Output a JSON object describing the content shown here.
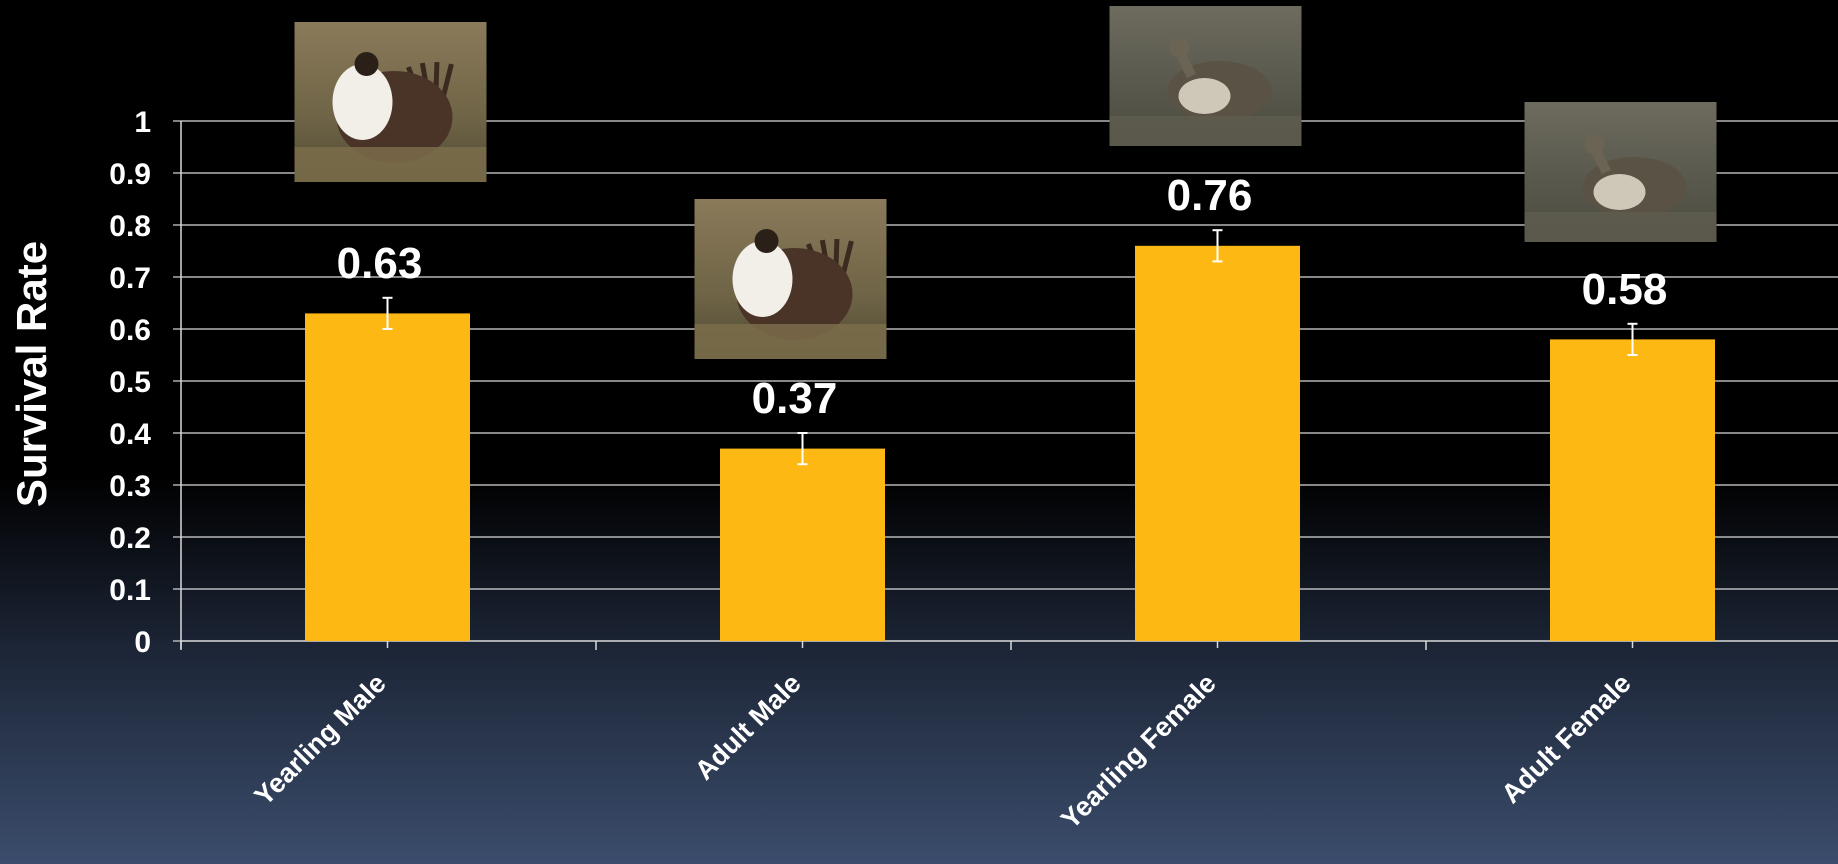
{
  "chart_data": {
    "type": "bar",
    "title": "",
    "xlabel": "",
    "ylabel": "Survival Rate",
    "categories": [
      "Yearling Male",
      "Adult Male",
      "Yearling Female",
      "Adult Female"
    ],
    "values": [
      0.63,
      0.37,
      0.76,
      0.58
    ],
    "data_labels": [
      "0.63",
      "0.37",
      "0.76",
      "0.58"
    ],
    "error_bars": [
      {
        "low": 0.6,
        "high": 0.66
      },
      {
        "low": 0.34,
        "high": 0.4
      },
      {
        "low": 0.73,
        "high": 0.79
      },
      {
        "low": 0.55,
        "high": 0.61
      }
    ],
    "ylim": [
      0,
      1
    ],
    "yticks": [
      "0",
      "0.1",
      "0.2",
      "0.3",
      "0.4",
      "0.5",
      "0.6",
      "0.7",
      "0.8",
      "0.9",
      "1"
    ],
    "grid": true,
    "legend": "none",
    "bar_color": "#FDB813",
    "images": [
      {
        "category": "Yearling Male",
        "icon": "sage-grouse-male-photo"
      },
      {
        "category": "Adult Male",
        "icon": "sage-grouse-male-photo"
      },
      {
        "category": "Yearling Female",
        "icon": "sage-grouse-female-photo"
      },
      {
        "category": "Adult Female",
        "icon": "sage-grouse-female-photo"
      }
    ]
  }
}
